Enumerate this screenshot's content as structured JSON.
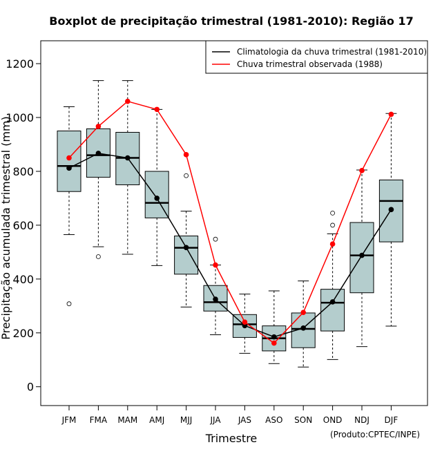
{
  "chart_data": {
    "type": "boxplot",
    "title": "Boxplot de precipitação trimestral (1981-2010): Região 17",
    "xlabel": "Trimestre",
    "ylabel": "Precipitação acumulada trimestral (mm)",
    "ylim": [
      -70,
      1285
    ],
    "yticks": [
      0,
      200,
      400,
      600,
      800,
      1000,
      1200
    ],
    "categories": [
      "JFM",
      "FMA",
      "MAM",
      "AMJ",
      "MJJ",
      "JJA",
      "JAS",
      "ASO",
      "SON",
      "OND",
      "NDJ",
      "DJF"
    ],
    "boxes": [
      {
        "whisker_low": 565,
        "q1": 725,
        "median": 820,
        "q3": 950,
        "whisker_high": 1040,
        "outliers": [
          308
        ]
      },
      {
        "whisker_low": 520,
        "q1": 778,
        "median": 860,
        "q3": 958,
        "whisker_high": 1137,
        "outliers": [
          483
        ]
      },
      {
        "whisker_low": 492,
        "q1": 750,
        "median": 850,
        "q3": 945,
        "whisker_high": 1137,
        "outliers": []
      },
      {
        "whisker_low": 450,
        "q1": 627,
        "median": 683,
        "q3": 800,
        "whisker_high": 1030,
        "outliers": []
      },
      {
        "whisker_low": 296,
        "q1": 418,
        "median": 516,
        "q3": 560,
        "whisker_high": 652,
        "outliers": [
          784
        ]
      },
      {
        "whisker_low": 193,
        "q1": 281,
        "median": 314,
        "q3": 376,
        "whisker_high": 452,
        "outliers": [
          548
        ]
      },
      {
        "whisker_low": 124,
        "q1": 183,
        "median": 232,
        "q3": 268,
        "whisker_high": 344,
        "outliers": []
      },
      {
        "whisker_low": 86,
        "q1": 133,
        "median": 180,
        "q3": 226,
        "whisker_high": 356,
        "outliers": []
      },
      {
        "whisker_low": 73,
        "q1": 145,
        "median": 215,
        "q3": 274,
        "whisker_high": 393,
        "outliers": []
      },
      {
        "whisker_low": 101,
        "q1": 207,
        "median": 312,
        "q3": 362,
        "whisker_high": 568,
        "outliers": [
          600,
          645
        ]
      },
      {
        "whisker_low": 149,
        "q1": 349,
        "median": 488,
        "q3": 610,
        "whisker_high": 805,
        "outliers": []
      },
      {
        "whisker_low": 225,
        "q1": 538,
        "median": 690,
        "q3": 768,
        "whisker_high": 1015,
        "outliers": []
      }
    ],
    "series": [
      {
        "name": "Climatologia da chuva trimestral (1981-2010)",
        "color": "#000000",
        "values": [
          812,
          867,
          850,
          700,
          517,
          325,
          227,
          185,
          218,
          315,
          488,
          658
        ]
      },
      {
        "name": "Chuva trimestral observada (1988)",
        "color": "#ff0000",
        "values": [
          850,
          967,
          1060,
          1030,
          862,
          452,
          240,
          162,
          276,
          530,
          803,
          1012
        ]
      }
    ],
    "box_fill": "#b4cdcd",
    "legend_position": "top-right",
    "credit": "(Produto:CPTEC/INPE)"
  }
}
